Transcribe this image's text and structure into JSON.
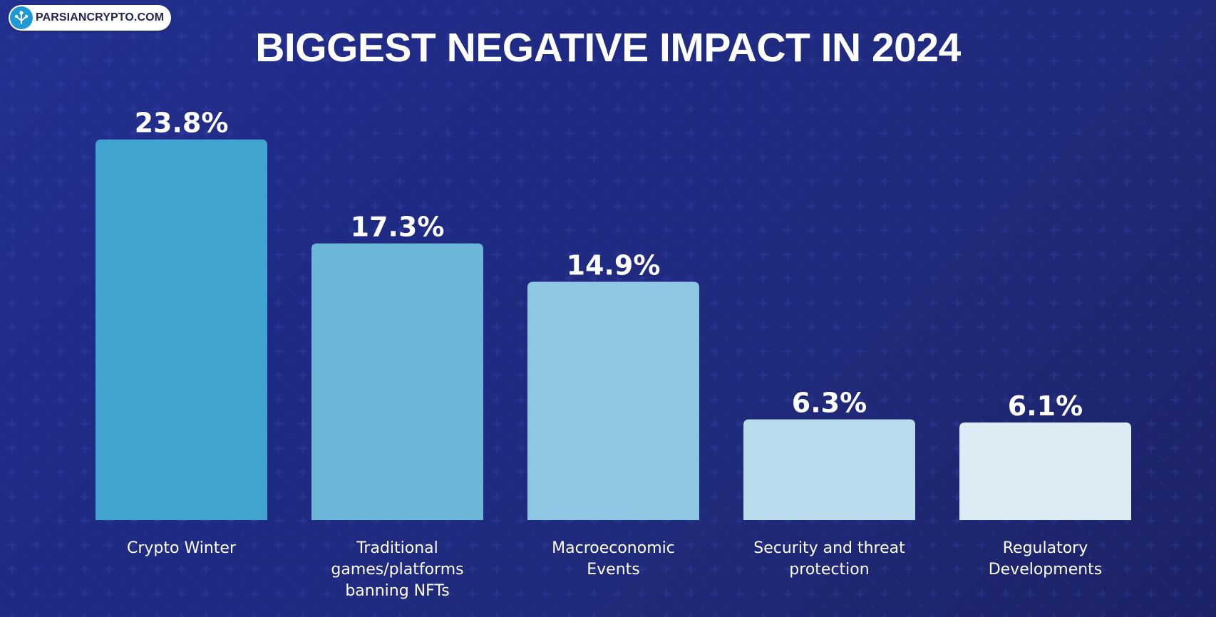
{
  "logo": {
    "text": "PARSIANCRYPTO.COM"
  },
  "colors": {
    "background": "#222c85",
    "text": "#ffffff",
    "bars": [
      "#42a4d0",
      "#6cb6d8",
      "#8ec6e3",
      "#b8dceb",
      "#ddecf4"
    ]
  },
  "chart_data": {
    "type": "bar",
    "title": "BIGGEST NEGATIVE IMPACT IN 2024",
    "xlabel": "",
    "ylabel": "",
    "ylim": [
      0,
      24.5
    ],
    "grid": false,
    "categories": [
      [
        "Crypto Winter"
      ],
      [
        "Traditional",
        "games/platforms",
        "banning NFTs"
      ],
      [
        "Macroeconomic",
        "Events"
      ],
      [
        "Security and threat",
        "protection"
      ],
      [
        "Regulatory",
        "Developments"
      ]
    ],
    "values": [
      23.8,
      17.3,
      14.9,
      6.3,
      6.1
    ],
    "value_labels": [
      "23.8%",
      "17.3%",
      "14.9%",
      "6.3%",
      "6.1%"
    ]
  }
}
